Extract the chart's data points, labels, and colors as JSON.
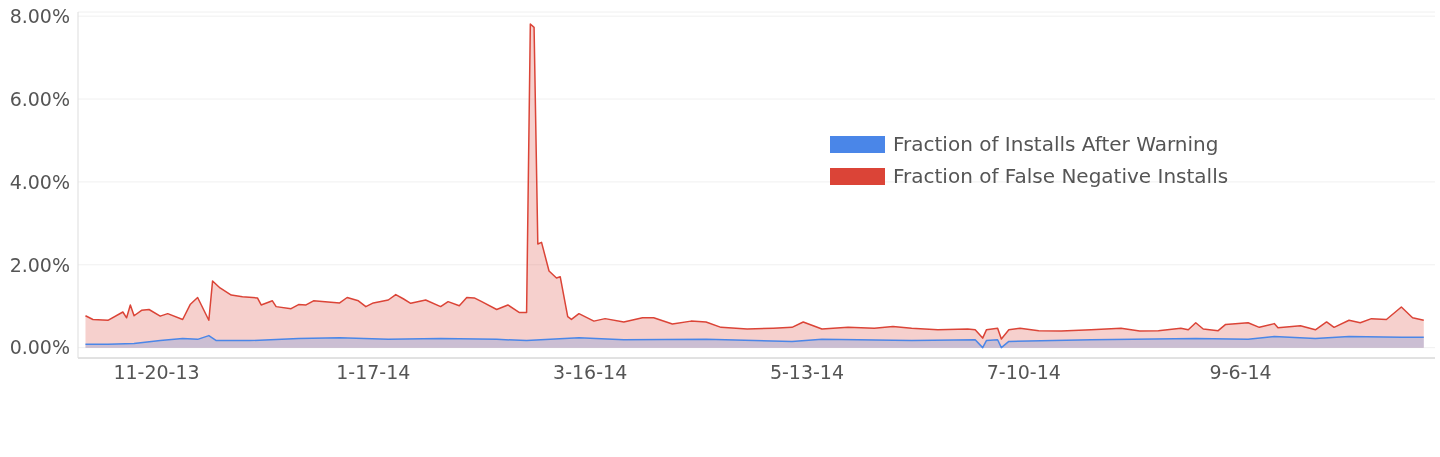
{
  "chart_data": {
    "type": "area",
    "legend": "top right",
    "grid": "y",
    "xlim": [
      "2013-10-30",
      "2014-10-28"
    ],
    "ylim": [
      -0.25,
      8.1
    ],
    "xticks": [
      {
        "value": "2013-11-20",
        "label": "11-20-13"
      },
      {
        "value": "2014-01-17",
        "label": "1-17-14"
      },
      {
        "value": "2014-03-16",
        "label": "3-16-14"
      },
      {
        "value": "2014-05-13",
        "label": "5-13-14"
      },
      {
        "value": "2014-07-10",
        "label": "7-10-14"
      },
      {
        "value": "2014-09-06",
        "label": "9-6-14"
      }
    ],
    "yticks": [
      {
        "value": 0,
        "label": "0.00%"
      },
      {
        "value": 2,
        "label": "2.00%"
      },
      {
        "value": 4,
        "label": "4.00%"
      },
      {
        "value": 6,
        "label": "6.00%"
      },
      {
        "value": 8,
        "label": "8.00%"
      }
    ],
    "series": [
      {
        "name": "Fraction of Installs After Warning",
        "color": "#4a86e8",
        "x": [
          "2013-11-01",
          "2013-11-07",
          "2013-11-14",
          "2013-11-21",
          "2013-11-27",
          "2013-12-01",
          "2013-12-04",
          "2013-12-06",
          "2013-12-15",
          "2013-12-28",
          "2014-01-08",
          "2014-01-21",
          "2014-02-04",
          "2014-02-19",
          "2014-02-27",
          "2014-03-13",
          "2014-03-25",
          "2014-04-16",
          "2014-05-09",
          "2014-05-17",
          "2014-06-10",
          "2014-06-27",
          "2014-06-29",
          "2014-06-30",
          "2014-07-03",
          "2014-07-04",
          "2014-07-06",
          "2014-07-28",
          "2014-08-25",
          "2014-09-08",
          "2014-09-15",
          "2014-09-26",
          "2014-10-05",
          "2014-10-19",
          "2014-10-25"
        ],
        "values": [
          0.08,
          0.08,
          0.1,
          0.17,
          0.22,
          0.2,
          0.29,
          0.17,
          0.17,
          0.22,
          0.24,
          0.2,
          0.22,
          0.2,
          0.17,
          0.24,
          0.19,
          0.2,
          0.15,
          0.2,
          0.17,
          0.19,
          0.0,
          0.17,
          0.19,
          0.0,
          0.15,
          0.19,
          0.22,
          0.2,
          0.27,
          0.22,
          0.27,
          0.25,
          0.25
        ]
      },
      {
        "name": "Fraction of False Negative Installs",
        "color": "#db4437",
        "x": [
          "2013-11-01",
          "2013-11-03",
          "2013-11-07",
          "2013-11-11",
          "2013-11-12",
          "2013-11-13",
          "2013-11-14",
          "2013-11-16",
          "2013-11-18",
          "2013-11-21",
          "2013-11-23",
          "2013-11-27",
          "2013-11-29",
          "2013-12-01",
          "2013-12-04",
          "2013-12-05",
          "2013-12-07",
          "2013-12-10",
          "2013-12-13",
          "2013-12-17",
          "2013-12-18",
          "2013-12-21",
          "2013-12-22",
          "2013-12-26",
          "2013-12-28",
          "2013-12-30",
          "2014-01-01",
          "2014-01-08",
          "2014-01-10",
          "2014-01-13",
          "2014-01-15",
          "2014-01-17",
          "2014-01-21",
          "2014-01-23",
          "2014-01-25",
          "2014-01-27",
          "2014-01-31",
          "2014-02-04",
          "2014-02-06",
          "2014-02-09",
          "2014-02-11",
          "2014-02-13",
          "2014-02-15",
          "2014-02-19",
          "2014-02-22",
          "2014-02-25",
          "2014-02-27",
          "2014-02-28",
          "2014-03-01",
          "2014-03-02",
          "2014-03-03",
          "2014-03-05",
          "2014-03-07",
          "2014-03-08",
          "2014-03-10",
          "2014-03-11",
          "2014-03-13",
          "2014-03-17",
          "2014-03-20",
          "2014-03-25",
          "2014-03-30",
          "2014-04-02",
          "2014-04-07",
          "2014-04-12",
          "2014-04-16",
          "2014-04-20",
          "2014-04-27",
          "2014-05-04",
          "2014-05-09",
          "2014-05-12",
          "2014-05-17",
          "2014-05-24",
          "2014-05-31",
          "2014-06-05",
          "2014-06-10",
          "2014-06-17",
          "2014-06-25",
          "2014-06-27",
          "2014-06-29",
          "2014-06-30",
          "2014-07-03",
          "2014-07-04",
          "2014-07-06",
          "2014-07-09",
          "2014-07-14",
          "2014-07-20",
          "2014-07-28",
          "2014-08-05",
          "2014-08-10",
          "2014-08-15",
          "2014-08-21",
          "2014-08-23",
          "2014-08-25",
          "2014-08-27",
          "2014-08-31",
          "2014-09-02",
          "2014-09-08",
          "2014-09-11",
          "2014-09-15",
          "2014-09-16",
          "2014-09-22",
          "2014-09-26",
          "2014-09-29",
          "2014-10-01",
          "2014-10-05",
          "2014-10-08",
          "2014-10-11",
          "2014-10-15",
          "2014-10-19",
          "2014-10-22",
          "2014-10-25"
        ],
        "values": [
          0.77,
          0.68,
          0.66,
          0.86,
          0.72,
          1.03,
          0.77,
          0.9,
          0.92,
          0.76,
          0.82,
          0.68,
          1.04,
          1.21,
          0.66,
          1.61,
          1.44,
          1.27,
          1.23,
          1.2,
          1.03,
          1.13,
          0.99,
          0.94,
          1.04,
          1.03,
          1.13,
          1.08,
          1.21,
          1.13,
          0.99,
          1.08,
          1.15,
          1.28,
          1.18,
          1.07,
          1.15,
          0.99,
          1.11,
          1.01,
          1.21,
          1.2,
          1.11,
          0.92,
          1.03,
          0.85,
          0.85,
          7.81,
          7.73,
          2.5,
          2.54,
          1.85,
          1.68,
          1.71,
          0.75,
          0.68,
          0.82,
          0.64,
          0.7,
          0.62,
          0.72,
          0.72,
          0.57,
          0.64,
          0.62,
          0.49,
          0.45,
          0.47,
          0.49,
          0.62,
          0.45,
          0.49,
          0.47,
          0.51,
          0.47,
          0.43,
          0.45,
          0.43,
          0.23,
          0.43,
          0.47,
          0.21,
          0.43,
          0.47,
          0.41,
          0.4,
          0.43,
          0.47,
          0.4,
          0.41,
          0.47,
          0.43,
          0.6,
          0.45,
          0.41,
          0.56,
          0.6,
          0.49,
          0.58,
          0.48,
          0.53,
          0.43,
          0.62,
          0.49,
          0.66,
          0.6,
          0.7,
          0.68,
          0.98,
          0.72,
          0.66
        ]
      }
    ]
  }
}
